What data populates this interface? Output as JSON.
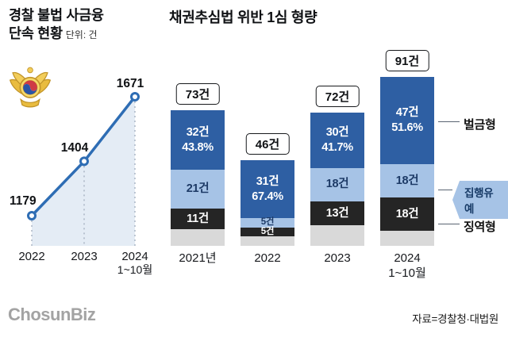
{
  "left": {
    "title_line1": "경찰 불법 사금융",
    "title_line2": "단속 현황",
    "unit": "단위: 건"
  },
  "right": {
    "title": "채권추심법 위반 1심 형량",
    "legend": [
      {
        "label": "벌금형"
      },
      {
        "label": "집행유예"
      },
      {
        "label": "징역형"
      }
    ]
  },
  "footer": {
    "logo": "ChosunBiz",
    "source": "자료=경찰청·대법원"
  },
  "chart_data": [
    {
      "type": "line",
      "title": "경찰 불법 사금융 단속 현황",
      "unit": "단위: 건",
      "categories": [
        "2022",
        "2023",
        "2024\n1~10월"
      ],
      "values": [
        1179,
        1404,
        1671
      ],
      "line_color": "#2e6db4"
    },
    {
      "type": "bar",
      "stacked": true,
      "title": "채권추심법 위반 1심 형량",
      "categories": [
        "2021년",
        "2022",
        "2023",
        "2024\n1~10월"
      ],
      "totals": [
        73,
        46,
        72,
        91
      ],
      "total_labels": [
        "73건",
        "46건",
        "72건",
        "91건"
      ],
      "unit_suffix": "건",
      "series": [
        {
          "name": "벌금형",
          "color": "#2e5fa3",
          "values": [
            32,
            31,
            30,
            47
          ],
          "pct_labels": [
            "43.8%",
            "67.4%",
            "41.7%",
            "51.6%"
          ],
          "text_color": "#ffffff"
        },
        {
          "name": "집행유예",
          "color": "#a6c3e6",
          "values": [
            21,
            5,
            18,
            18
          ],
          "text_color": "#1d3a66"
        },
        {
          "name": "징역형",
          "color": "#252525",
          "values": [
            11,
            5,
            13,
            18
          ],
          "text_color": "#ffffff"
        },
        {
          "name": "unlabeled",
          "color": "#d9d9d9",
          "values": [
            9,
            5,
            11,
            8
          ],
          "text_color": ""
        }
      ],
      "legend_position": "right",
      "source": "자료=경찰청·대법원"
    }
  ]
}
